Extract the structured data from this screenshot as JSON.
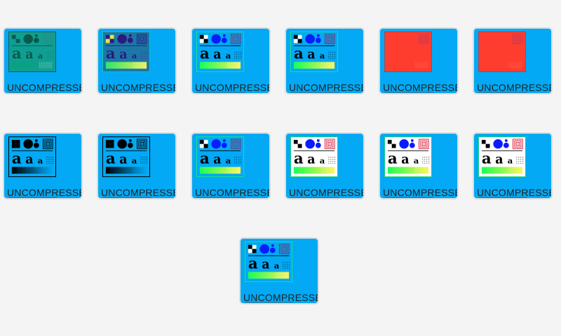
{
  "items": [
    {
      "label": "UNCOMPRESSED",
      "variant": "v1",
      "progress": 0.7
    },
    {
      "label": "UNCOMPRESSED",
      "variant": "v2",
      "progress": 0.7
    },
    {
      "label": "UNCOMPRESSED",
      "variant": "v3",
      "progress": 0.7
    },
    {
      "label": "UNCOMPRESSED",
      "variant": "v3",
      "progress": 0.7
    },
    {
      "label": "UNCOMPRESSED",
      "variant": "v4",
      "progress": 0.7
    },
    {
      "label": "UNCOMPRESSED",
      "variant": "v5",
      "progress": 0.7
    },
    {
      "label": "UNCOMPRESSED",
      "variant": "v6",
      "progress": 0.7
    },
    {
      "label": "UNCOMPRESSED",
      "variant": "v6",
      "progress": 0.7
    },
    {
      "label": "UNCOMPRESSED",
      "variant": "v3",
      "progress": 0.7
    },
    {
      "label": "UNCOMPRESSED",
      "variant": "v7",
      "progress": 0.7
    },
    {
      "label": "UNCOMPRESSED",
      "variant": "v7",
      "progress": 0.7
    },
    {
      "label": "UNCOMPRESSED",
      "variant": "v7",
      "progress": 0.7
    },
    {
      "label": "UNCOMPRESSED",
      "variant": "v3",
      "progress": 0.7
    }
  ],
  "colors": {
    "page_bg": "#f4f4f4",
    "tile_bg": "#03a9f4",
    "tile_border": "#dcdcdc",
    "label": "#222222",
    "bar": "#1e88b8"
  },
  "thumbnail_glyph": "a a a"
}
